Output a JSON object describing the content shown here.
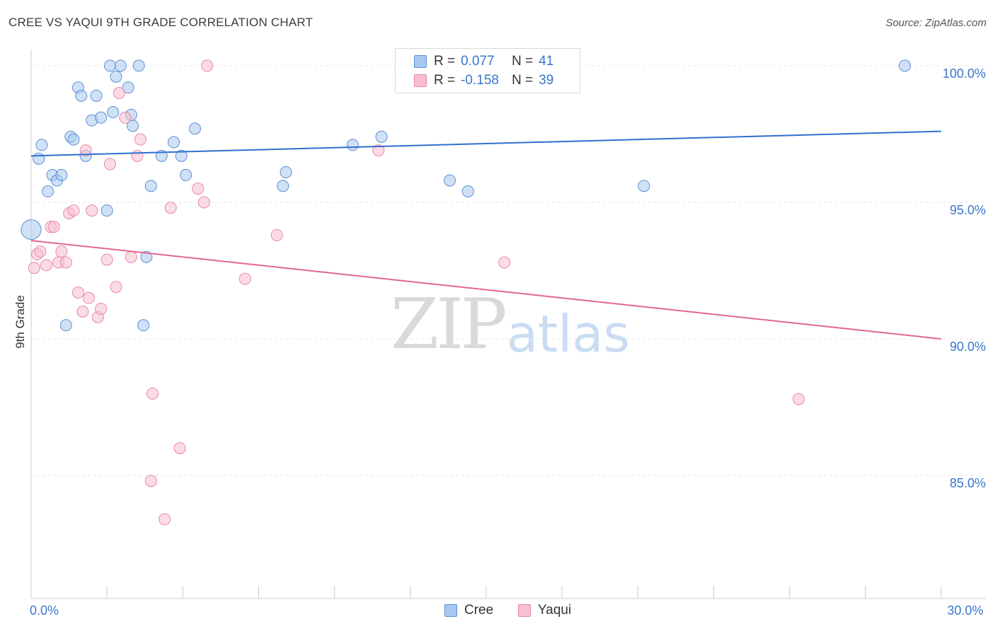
{
  "header": {
    "title": "CREE VS YAQUI 9TH GRADE CORRELATION CHART",
    "source": "Source: ZipAtlas.com"
  },
  "watermark": {
    "zip": "ZIP",
    "atlas": "atlas"
  },
  "legend_top": {
    "rows": [
      {
        "r_label": "R =",
        "r_value": "0.077",
        "n_label": "N =",
        "n_value": "41"
      },
      {
        "r_label": "R =",
        "r_value": "-0.158",
        "n_label": "N =",
        "n_value": "39"
      }
    ]
  },
  "legend_bottom": {
    "items": [
      {
        "label": "Cree"
      },
      {
        "label": "Yaqui"
      }
    ]
  },
  "colors": {
    "cree_fill": "#a9c8ee",
    "cree_stroke": "#5b8fd6",
    "cree_line": "#2f6fcf",
    "yaqui_fill": "#f7bfd0",
    "yaqui_stroke": "#e887a8",
    "yaqui_line": "#e3668f",
    "axis_text": "#3a76cc",
    "grid": "#e6e6e6"
  },
  "chart_data": {
    "type": "scatter",
    "title": "CREE VS YAQUI 9TH GRADE CORRELATION CHART",
    "xlabel": "",
    "ylabel": "9th Grade",
    "xlim": [
      0,
      30
    ],
    "ylim": [
      80.5,
      100.8
    ],
    "x_tick_labels": [
      {
        "value": 0,
        "label": "0.0%"
      },
      {
        "value": 30,
        "label": "30.0%"
      }
    ],
    "y_ticks": [
      {
        "value": 100,
        "label": "100.0%"
      },
      {
        "value": 95,
        "label": "95.0%"
      },
      {
        "value": 90,
        "label": "90.0%"
      },
      {
        "value": 85,
        "label": "85.0%"
      }
    ],
    "series": [
      {
        "name": "Cree",
        "trend": {
          "x": [
            0,
            30
          ],
          "y": [
            96.7,
            97.6
          ]
        },
        "points": [
          {
            "x": 0.0,
            "y": 94.0,
            "big": true
          },
          {
            "x": 0.25,
            "y": 96.6
          },
          {
            "x": 0.35,
            "y": 97.1
          },
          {
            "x": 0.55,
            "y": 95.4
          },
          {
            "x": 0.7,
            "y": 96.0
          },
          {
            "x": 0.85,
            "y": 95.8
          },
          {
            "x": 1.0,
            "y": 96.0
          },
          {
            "x": 1.15,
            "y": 90.5
          },
          {
            "x": 1.3,
            "y": 97.4
          },
          {
            "x": 1.4,
            "y": 97.3
          },
          {
            "x": 1.55,
            "y": 99.2
          },
          {
            "x": 1.65,
            "y": 98.9
          },
          {
            "x": 1.8,
            "y": 96.7
          },
          {
            "x": 2.0,
            "y": 98.0
          },
          {
            "x": 2.15,
            "y": 98.9
          },
          {
            "x": 2.3,
            "y": 98.1
          },
          {
            "x": 2.5,
            "y": 94.7
          },
          {
            "x": 2.6,
            "y": 100.0
          },
          {
            "x": 2.7,
            "y": 98.3
          },
          {
            "x": 2.8,
            "y": 99.6
          },
          {
            "x": 2.95,
            "y": 100.0
          },
          {
            "x": 3.2,
            "y": 99.2
          },
          {
            "x": 3.3,
            "y": 98.2
          },
          {
            "x": 3.35,
            "y": 97.8
          },
          {
            "x": 3.55,
            "y": 100.0
          },
          {
            "x": 3.8,
            "y": 93.0
          },
          {
            "x": 3.7,
            "y": 90.5
          },
          {
            "x": 3.95,
            "y": 95.6
          },
          {
            "x": 4.3,
            "y": 96.7
          },
          {
            "x": 4.7,
            "y": 97.2
          },
          {
            "x": 4.95,
            "y": 96.7
          },
          {
            "x": 5.1,
            "y": 96.0
          },
          {
            "x": 5.4,
            "y": 97.7
          },
          {
            "x": 8.3,
            "y": 95.6
          },
          {
            "x": 8.4,
            "y": 96.1
          },
          {
            "x": 10.6,
            "y": 97.1
          },
          {
            "x": 11.55,
            "y": 97.4
          },
          {
            "x": 13.8,
            "y": 95.8
          },
          {
            "x": 14.4,
            "y": 95.4
          },
          {
            "x": 20.2,
            "y": 95.6
          },
          {
            "x": 28.8,
            "y": 100.0
          }
        ]
      },
      {
        "name": "Yaqui",
        "trend": {
          "x": [
            0,
            30
          ],
          "y": [
            93.6,
            90.0
          ]
        },
        "points": [
          {
            "x": 0.1,
            "y": 92.6
          },
          {
            "x": 0.2,
            "y": 93.1
          },
          {
            "x": 0.3,
            "y": 93.2
          },
          {
            "x": 0.5,
            "y": 92.7
          },
          {
            "x": 0.65,
            "y": 94.1
          },
          {
            "x": 0.75,
            "y": 94.1
          },
          {
            "x": 0.9,
            "y": 92.8
          },
          {
            "x": 1.0,
            "y": 93.2
          },
          {
            "x": 1.15,
            "y": 92.8
          },
          {
            "x": 1.25,
            "y": 94.6
          },
          {
            "x": 1.4,
            "y": 94.7
          },
          {
            "x": 1.55,
            "y": 91.7
          },
          {
            "x": 1.7,
            "y": 91.0
          },
          {
            "x": 1.8,
            "y": 96.9
          },
          {
            "x": 1.9,
            "y": 91.5
          },
          {
            "x": 2.0,
            "y": 94.7
          },
          {
            "x": 2.2,
            "y": 90.8
          },
          {
            "x": 2.3,
            "y": 91.1
          },
          {
            "x": 2.5,
            "y": 92.9
          },
          {
            "x": 2.6,
            "y": 96.4
          },
          {
            "x": 2.8,
            "y": 91.9
          },
          {
            "x": 2.9,
            "y": 99.0
          },
          {
            "x": 3.1,
            "y": 98.1
          },
          {
            "x": 3.3,
            "y": 93.0
          },
          {
            "x": 3.5,
            "y": 96.7
          },
          {
            "x": 3.6,
            "y": 97.3
          },
          {
            "x": 3.95,
            "y": 84.8
          },
          {
            "x": 4.0,
            "y": 88.0
          },
          {
            "x": 4.4,
            "y": 83.4
          },
          {
            "x": 4.6,
            "y": 94.8
          },
          {
            "x": 4.9,
            "y": 86.0
          },
          {
            "x": 5.5,
            "y": 95.5
          },
          {
            "x": 5.7,
            "y": 95.0
          },
          {
            "x": 5.8,
            "y": 100.0
          },
          {
            "x": 7.05,
            "y": 92.2
          },
          {
            "x": 8.1,
            "y": 93.8
          },
          {
            "x": 11.45,
            "y": 96.9
          },
          {
            "x": 15.6,
            "y": 92.8
          },
          {
            "x": 25.3,
            "y": 87.8
          }
        ]
      }
    ]
  }
}
